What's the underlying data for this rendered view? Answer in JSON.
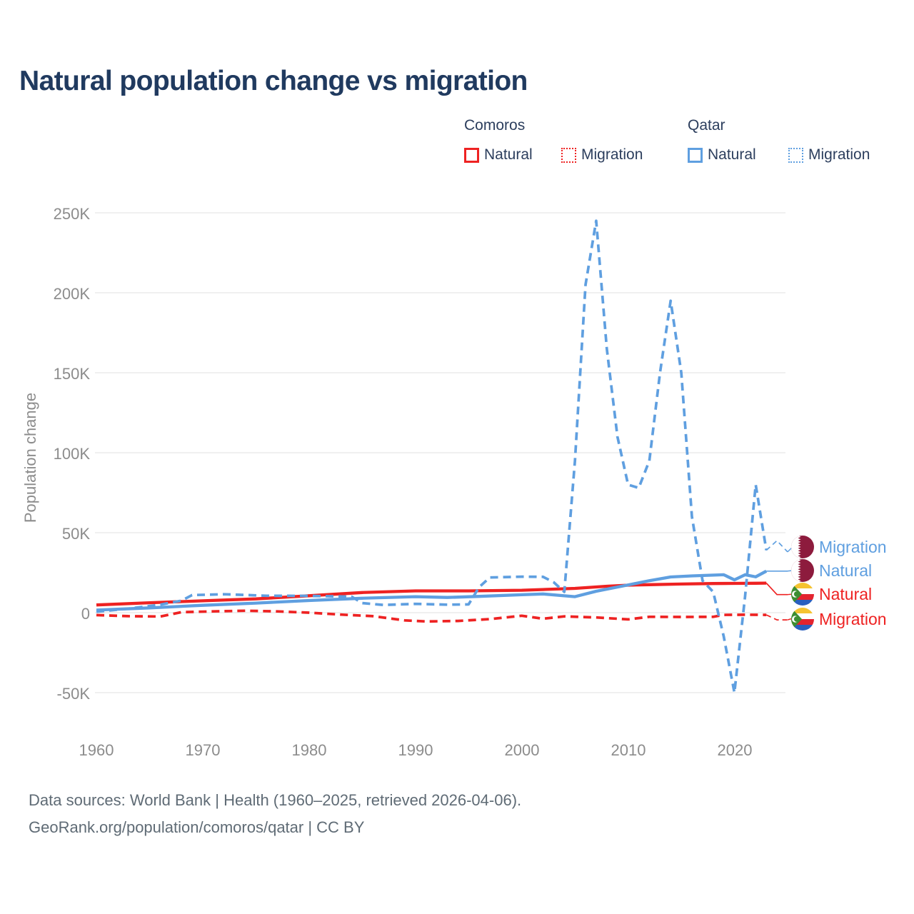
{
  "title": "Natural population change vs migration",
  "legend": {
    "groups": [
      {
        "label": "Comoros",
        "color": "#ee2222",
        "items": [
          {
            "label": "Natural",
            "style": "solid"
          },
          {
            "label": "Migration",
            "style": "dotted"
          }
        ]
      },
      {
        "label": "Qatar",
        "color": "#5f9fe0",
        "items": [
          {
            "label": "Natural",
            "style": "solid"
          },
          {
            "label": "Migration",
            "style": "dotted"
          }
        ]
      }
    ]
  },
  "y_axis": {
    "label": "Population change",
    "ticks": [
      "250K",
      "200K",
      "150K",
      "100K",
      "50K",
      "0",
      "-50K"
    ]
  },
  "x_axis": {
    "ticks": [
      "1960",
      "1970",
      "1980",
      "1990",
      "2000",
      "2010",
      "2020"
    ]
  },
  "end_labels": [
    {
      "label": "Migration",
      "country": "Qatar",
      "color": "#5f9fe0",
      "icon": "qatar-flag-icon"
    },
    {
      "label": "Natural",
      "country": "Qatar",
      "color": "#5f9fe0",
      "icon": "qatar-flag-icon"
    },
    {
      "label": "Natural",
      "country": "Comoros",
      "color": "#ee2222",
      "icon": "comoros-flag-icon"
    },
    {
      "label": "Migration",
      "country": "Comoros",
      "color": "#ee2222",
      "icon": "comoros-flag-icon"
    }
  ],
  "footer": {
    "line1": "Data sources: World Bank | Health (1960–2025, retrieved 2026-04-06).",
    "line2": "GeoRank.org/population/comoros/qatar | CC BY"
  },
  "chart_data": {
    "type": "line",
    "title": "Natural population change vs migration",
    "ylabel": "Population change",
    "x_range": [
      1960,
      2025
    ],
    "ylim": [
      -50000,
      250000
    ],
    "grid": "horizontal-only",
    "legend_position": "top-right",
    "y_tick_values": [
      250000,
      200000,
      150000,
      100000,
      50000,
      0,
      -50000
    ],
    "x_tick_values": [
      1960,
      1970,
      1980,
      1990,
      2000,
      2010,
      2020
    ],
    "units": "people per year",
    "projection_from": 2023,
    "series": [
      {
        "name": "Comoros Migration",
        "color": "#ee2222",
        "style": "dashed",
        "x": [
          1960,
          1963,
          1966,
          1968,
          1971,
          1974,
          1977,
          1980,
          1983,
          1986,
          1989,
          1991,
          1994,
          1997,
          2000,
          2002,
          2004,
          2007,
          2010,
          2012,
          2015,
          2018,
          2019,
          2021,
          2023,
          2024,
          2025
        ],
        "y": [
          -1500,
          -2200,
          -2400,
          300,
          800,
          1200,
          800,
          0,
          -1200,
          -2200,
          -4800,
          -5500,
          -5200,
          -4000,
          -1900,
          -3800,
          -2300,
          -3000,
          -4200,
          -2600,
          -2700,
          -2600,
          -1400,
          -1300,
          -1400,
          -4500,
          -4500
        ]
      },
      {
        "name": "Comoros Natural",
        "color": "#ee2222",
        "style": "solid",
        "x": [
          1960,
          1965,
          1970,
          1975,
          1980,
          1985,
          1990,
          1995,
          2000,
          2005,
          2008,
          2010,
          2012,
          2015,
          2018,
          2020,
          2022,
          2023,
          2024,
          2025
        ],
        "y": [
          4800,
          6200,
          7400,
          8600,
          10600,
          12600,
          13600,
          13600,
          14000,
          15200,
          16500,
          17200,
          17500,
          17900,
          18200,
          18300,
          18400,
          18500,
          11300,
          11300
        ]
      },
      {
        "name": "Qatar Natural",
        "color": "#5f9fe0",
        "style": "solid",
        "x": [
          1960,
          1965,
          1970,
          1975,
          1980,
          1985,
          1990,
          1993,
          1996,
          2000,
          2002,
          2005,
          2007,
          2010,
          2012,
          2014,
          2016,
          2019,
          2020,
          2021,
          2022,
          2023,
          2024,
          2025
        ],
        "y": [
          1600,
          3000,
          4600,
          6000,
          7600,
          9000,
          10000,
          9500,
          10200,
          11200,
          11700,
          10000,
          13400,
          17300,
          20000,
          22300,
          23000,
          23700,
          20500,
          23700,
          22400,
          26000,
          26000,
          26000
        ]
      },
      {
        "name": "Qatar Migration",
        "color": "#5f9fe0",
        "style": "dashed",
        "x": [
          1960,
          1963,
          1966,
          1968,
          1969,
          1972,
          1976,
          1980,
          1984,
          1985,
          1987,
          1990,
          1993,
          1995,
          1996,
          1997,
          2000,
          2002,
          2003,
          2004,
          2005,
          2006,
          2007,
          2008,
          2009,
          2010,
          2011,
          2012,
          2013,
          2014,
          2015,
          2016,
          2017,
          2018,
          2019,
          2020,
          2021,
          2022,
          2023,
          2024,
          2025
        ],
        "y": [
          600,
          2500,
          5000,
          7500,
          11000,
          11500,
          10600,
          10500,
          10000,
          6000,
          4800,
          5500,
          5000,
          5200,
          16000,
          22000,
          22500,
          22400,
          19000,
          13000,
          95000,
          205000,
          245000,
          165000,
          110000,
          80000,
          78000,
          95000,
          150000,
          195000,
          150000,
          60000,
          20000,
          13000,
          -15000,
          -50000,
          10000,
          80000,
          39000,
          45000,
          38000
        ]
      }
    ]
  }
}
